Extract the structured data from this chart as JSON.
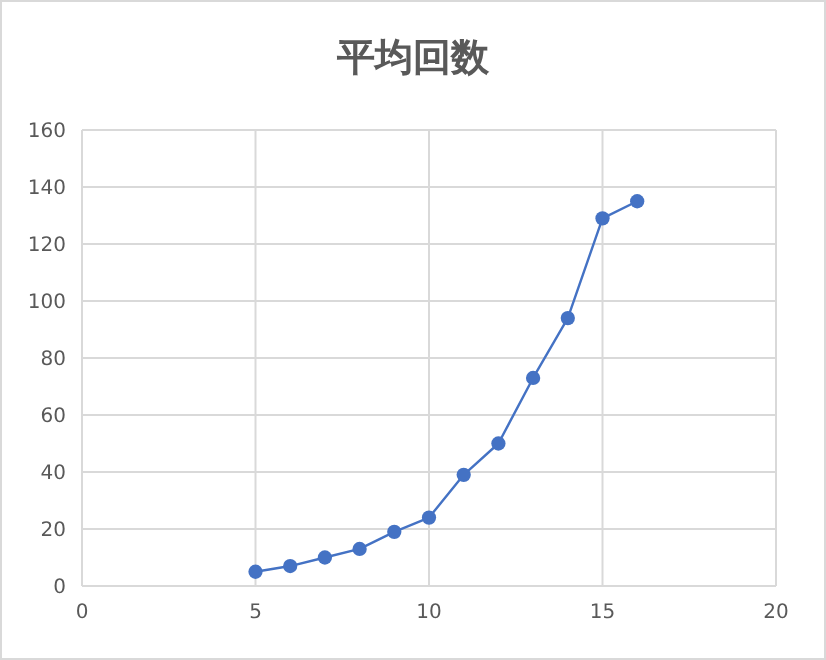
{
  "chart_data": {
    "type": "line",
    "title": "平均回数",
    "x": [
      5,
      6,
      7,
      8,
      9,
      10,
      11,
      12,
      13,
      14,
      15,
      16
    ],
    "series": [
      {
        "color": "#4472c4",
        "values": [
          5,
          7,
          10,
          13,
          19,
          24,
          39,
          50,
          73,
          94,
          129,
          135
        ]
      }
    ],
    "xlim": [
      0,
      20
    ],
    "xticks": [
      0,
      5,
      10,
      15,
      20
    ],
    "ylim": [
      0,
      160
    ],
    "yticks": [
      0,
      20,
      40,
      60,
      80,
      100,
      120,
      140,
      160
    ],
    "grid": true,
    "marker": "circle",
    "line_style": "solid"
  }
}
